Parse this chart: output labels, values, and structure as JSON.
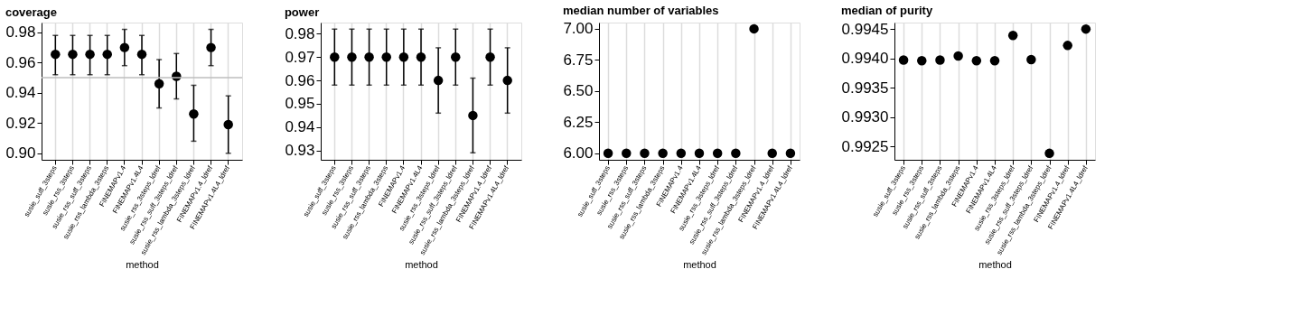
{
  "chart_data": [
    {
      "type": "scatter",
      "title": "coverage",
      "xlabel": "method",
      "categories": [
        "susie_suff_3steps",
        "susie_rss_3steps",
        "susie_rss_suff_3steps",
        "susie_rss_lambda_3steps",
        "FINEMAPv1.4",
        "FINEMAPv1.4L4",
        "susie_rss_3steps_ldref",
        "susie_rss_suff_3steps_ldref",
        "susie_rss_lambda_3steps_ldref",
        "FINEMAPv1.4_ldref",
        "FINEMAPv1.4L4_ldref"
      ],
      "series": [
        {
          "color": "#000000",
          "values": [
            0.9655,
            0.9655,
            0.9655,
            0.9655,
            0.97,
            0.9655,
            0.946,
            0.951,
            0.926,
            0.97,
            0.919
          ],
          "errors": [
            [
              0.952,
              0.978
            ],
            [
              0.952,
              0.978
            ],
            [
              0.952,
              0.978
            ],
            [
              0.952,
              0.978
            ],
            [
              0.958,
              0.982
            ],
            [
              0.952,
              0.978
            ],
            [
              0.93,
              0.962
            ],
            [
              0.936,
              0.966
            ],
            [
              0.908,
              0.945
            ],
            [
              0.958,
              0.982
            ],
            [
              0.9,
              0.938
            ]
          ]
        }
      ],
      "ylim": [
        0.8957,
        0.9865
      ],
      "yticks": [
        {
          "value": 0.9,
          "label": "0.90"
        },
        0.92,
        0.94,
        0.96,
        0.98
      ],
      "grid": "x",
      "marker": "circle",
      "ref_lines": [
        {
          "axis": "y",
          "value": 0.95,
          "color": "#bebebe"
        }
      ]
    },
    {
      "type": "scatter",
      "title": "power",
      "xlabel": "method",
      "categories": [
        "susie_suff_3steps",
        "susie_rss_3steps",
        "susie_rss_suff_3steps",
        "susie_rss_lambda_3steps",
        "FINEMAPv1.4",
        "FINEMAPv1.4L4",
        "susie_rss_3steps_ldref",
        "susie_rss_suff_3steps_ldref",
        "susie_rss_lambda_3steps_ldref",
        "FINEMAPv1.4_ldref",
        "FINEMAPv1.4L4_ldref"
      ],
      "series": [
        {
          "color": "#000000",
          "values": [
            0.97,
            0.97,
            0.97,
            0.97,
            0.97,
            0.97,
            0.96,
            0.97,
            0.945,
            0.97,
            0.96
          ],
          "errors": [
            [
              0.958,
              0.982
            ],
            [
              0.958,
              0.982
            ],
            [
              0.958,
              0.982
            ],
            [
              0.958,
              0.982
            ],
            [
              0.958,
              0.982
            ],
            [
              0.958,
              0.982
            ],
            [
              0.946,
              0.974
            ],
            [
              0.958,
              0.982
            ],
            [
              0.929,
              0.961
            ],
            [
              0.958,
              0.982
            ],
            [
              0.946,
              0.974
            ]
          ]
        }
      ],
      "ylim": [
        0.926,
        0.9848
      ],
      "yticks": [
        0.93,
        0.94,
        0.95,
        0.96,
        0.97,
        0.98
      ],
      "grid": "x",
      "marker": "circle"
    },
    {
      "type": "scatter",
      "title": "median number of variables",
      "xlabel": "method",
      "categories": [
        "susie_suff_3steps",
        "susie_rss_3steps",
        "susie_rss_suff_3steps",
        "susie_rss_lambda_3steps",
        "FINEMAPv1.4",
        "FINEMAPv1.4L4",
        "susie_rss_3steps_ldref",
        "susie_rss_suff_3steps_ldref",
        "susie_rss_lambda_3steps_ldref",
        "FINEMAPv1.4_ldref",
        "FINEMAPv1.4L4_ldref"
      ],
      "series": [
        {
          "color": "#000000",
          "values": [
            6,
            6,
            6,
            6,
            6,
            6,
            6,
            6,
            7,
            6,
            6
          ]
        }
      ],
      "ylim": [
        5.947,
        7.05
      ],
      "yticks": [
        {
          "value": 6,
          "label": "6.00"
        },
        {
          "value": 6.25,
          "label": "6.25"
        },
        {
          "value": 6.5,
          "label": "6.50"
        },
        {
          "value": 6.75,
          "label": "6.75"
        },
        {
          "value": 7,
          "label": "7.00"
        }
      ],
      "grid": "x",
      "marker": "circle"
    },
    {
      "type": "scatter",
      "title": "median of purity",
      "xlabel": "method",
      "categories": [
        "susie_suff_3steps",
        "susie_rss_3steps",
        "susie_rss_suff_3steps",
        "susie_rss_lambda_3steps",
        "FINEMAPv1.4",
        "FINEMAPv1.4L4",
        "susie_rss_3steps_ldref",
        "susie_rss_suff_3steps_ldref",
        "susie_rss_lambda_3steps_ldref",
        "FINEMAPv1.4_ldref",
        "FINEMAPv1.4L4_ldref"
      ],
      "series": [
        {
          "color": "#000000",
          "values": [
            0.99397,
            0.99396,
            0.99397,
            0.99404,
            0.99396,
            0.99396,
            0.99439,
            0.99398,
            0.99238,
            0.99422,
            0.9945
          ]
        }
      ],
      "ylim": [
        0.99227,
        0.99461
      ],
      "yticks": [
        {
          "value": 0.9925,
          "label": "0.9925"
        },
        {
          "value": 0.993,
          "label": "0.9930"
        },
        {
          "value": 0.9935,
          "label": "0.9935"
        },
        {
          "value": 0.994,
          "label": "0.9940"
        },
        {
          "value": 0.9945,
          "label": "0.9945"
        }
      ],
      "grid": "x",
      "marker": "circle"
    }
  ]
}
